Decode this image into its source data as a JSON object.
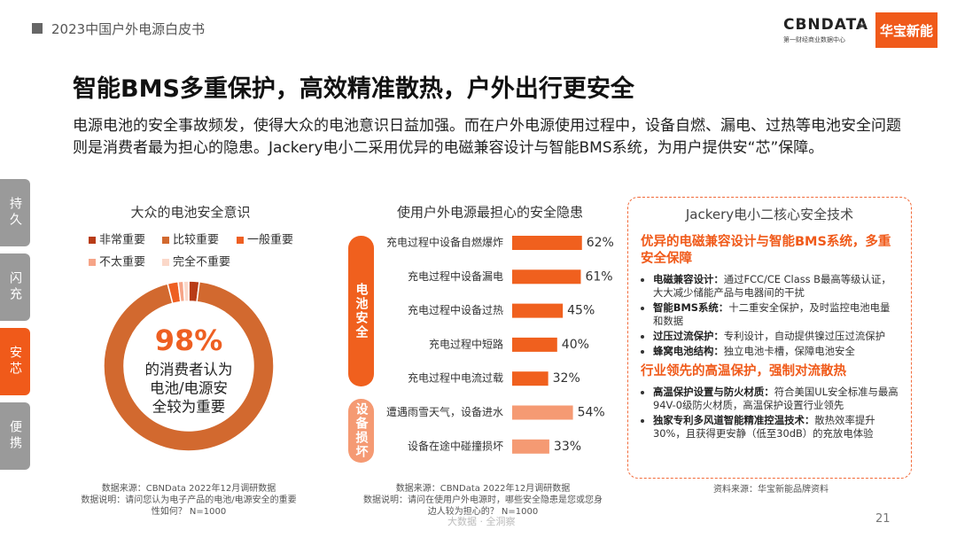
{
  "header": {
    "report": "2023中国户外电源白皮书",
    "logo1": "CBNDATA",
    "logo_sep": "×",
    "logo1_sub": "第一财经商业数据中心",
    "logo2": "华宝新能"
  },
  "title": "智能BMS多重保护，高效精准散热，户外出行更安全",
  "intro": "电源电池的安全事故频发，使得大众的电池意识日益加强。而在户外电源使用过程中，设备自燃、漏电、过热等电池安全问题则是消费者最为担心的隐患。Jackery电小二采用优异的电磁兼容设计与智能BMS系统，为用户提供安“芯”保障。",
  "side_tabs": [
    "持久",
    "闪充",
    "安芯",
    "便携"
  ],
  "active_tab": 2,
  "chart_data": [
    {
      "type": "donut",
      "title": "大众的电池安全意识",
      "categories": [
        "非常重要",
        "比较重要",
        "一般重要",
        "不太重要",
        "完全不重要"
      ],
      "values": [
        2,
        94,
        2,
        1,
        1
      ],
      "colors": [
        "#b83c17",
        "#d2692f",
        "#ee5f22",
        "#f6a487",
        "#fbd8c9"
      ],
      "center_label": "98%",
      "center_text": [
        "的消费者认为",
        "电池/电源安",
        "全较为重要"
      ],
      "source": "数据来源：CBNData 2022年12月调研数据",
      "note": "数据说明：请问您认为电子产品的电池/电源安全的重要性如何？ N=1000"
    },
    {
      "type": "bar",
      "title": "使用户外电源最担心的安全隐患",
      "xlim": [
        0,
        100
      ],
      "groups": [
        {
          "label": "电池安全",
          "color": "#f0601e",
          "categories": [
            "充电过程中设备自燃爆炸",
            "充电过程中设备漏电",
            "充电过程中设备过热",
            "充电过程中短路",
            "充电过程中电流过载"
          ],
          "values": [
            62,
            61,
            45,
            40,
            32
          ],
          "value_labels": [
            "62%",
            "61%",
            "45%",
            "40%",
            "32%"
          ]
        },
        {
          "label": "设备损坏",
          "color": "#f59a73",
          "categories": [
            "遭遇雨雪天气，设备进水",
            "设备在途中碰撞损坏"
          ],
          "values": [
            54,
            33
          ],
          "value_labels": [
            "54%",
            "33%"
          ]
        }
      ],
      "source": "数据来源：CBNData 2022年12月调研数据",
      "note": "数据说明：请问在使用户外电源时，哪些安全隐患是您或您身边人较为担心的？ N=1000"
    }
  ],
  "tech": {
    "title": "Jackery电小二核心安全技术",
    "sections": [
      {
        "heading": "优异的电磁兼容设计与智能BMS系统，多重安全保障",
        "items": [
          {
            "label": "电磁兼容设计：",
            "text": "通过FCC/CE Class B最高等级认证，大大减少储能产品与电器间的干扰"
          },
          {
            "label": "智能BMS系统：",
            "text": "十二重安全保护，及时监控电池电量和数据"
          },
          {
            "label": "过压过流保护：",
            "text": "专利设计，自动提供镍过压过流保护"
          },
          {
            "label": "蜂窝电池结构：",
            "text": "独立电池卡槽，保障电池安全"
          }
        ]
      },
      {
        "heading": "行业领先的高温保护，强制对流散热",
        "items": [
          {
            "label": "高温保护设置与防火材质：",
            "text": "符合美国UL安全标准与最高94V-0级防火材质，高温保护设置行业领先"
          },
          {
            "label": "独家专利多风道智能精准控温技术：",
            "text": "散热效率提升30%，且获得更安静（低至30dB）的充放电体验"
          }
        ]
      }
    ],
    "source": "资料来源：华宝新能品牌资料"
  },
  "page_number": "21",
  "watermark": "大数据 · 全洞察"
}
